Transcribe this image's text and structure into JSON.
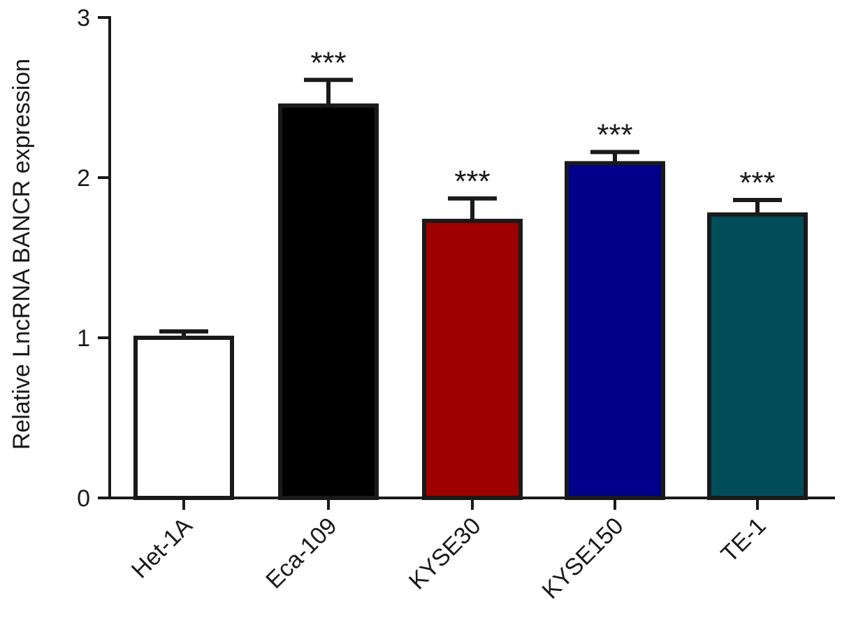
{
  "chart_data": {
    "type": "bar",
    "title": "",
    "xlabel": "",
    "ylabel": "Relative LncRNA BANCR expression",
    "categories": [
      "Het-1A",
      "Eca-109",
      "KYSE30",
      "KYSE150",
      "TE-1"
    ],
    "values": [
      1.0,
      2.45,
      1.73,
      2.09,
      1.77
    ],
    "error": [
      0.04,
      0.16,
      0.14,
      0.07,
      0.09
    ],
    "significance": [
      "",
      "***",
      "***",
      "***",
      "***"
    ],
    "colors": [
      "#ffffff",
      "#000000",
      "#9e0000",
      "#00008b",
      "#004d5a"
    ],
    "ylim": [
      0,
      3
    ],
    "yticks": [
      0,
      1,
      2,
      3
    ],
    "ytick_labels": [
      "0",
      "1",
      "2",
      "3"
    ],
    "grid": false,
    "legend": "none"
  }
}
